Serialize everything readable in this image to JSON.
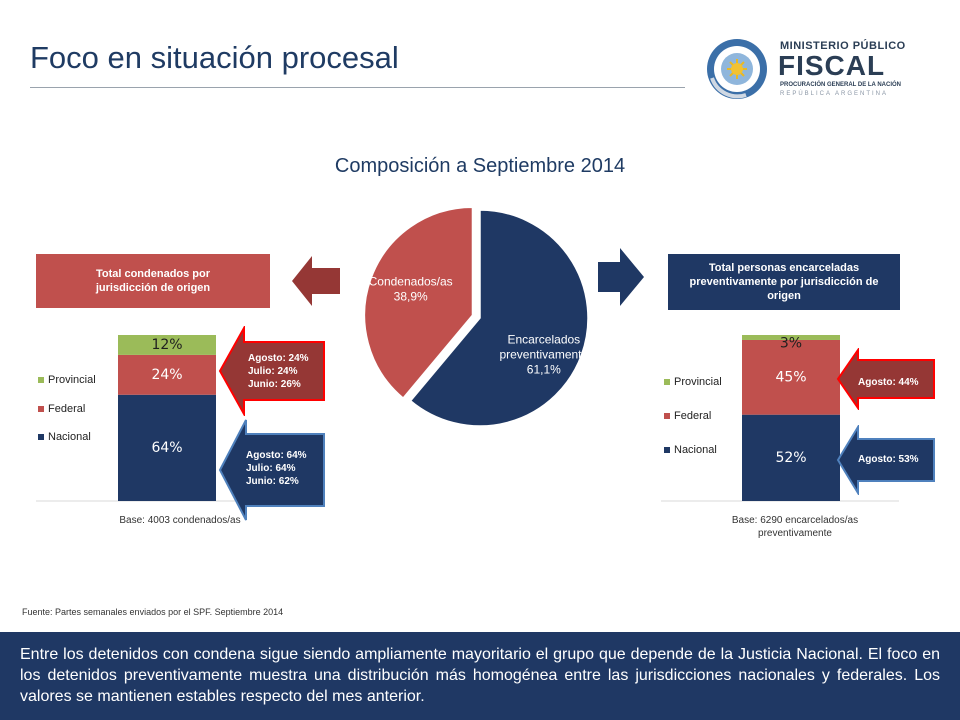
{
  "header": {
    "title": "Foco en situación procesal",
    "logo": {
      "line1": "MINISTERIO PÚBLICO",
      "line2": "FISCAL",
      "line3": "PROCURACIÓN GENERAL DE LA NACIÓN",
      "line4": "REPÚBLICA ARGENTINA"
    }
  },
  "chart_title": "Composición a Septiembre 2014",
  "boxes": {
    "condenados": "Total condenados por jurisdicción de origen",
    "encarcelados": "Total personas encarceladas preventivamente por jurisdicción de origen"
  },
  "chart_data": [
    {
      "type": "pie",
      "title": "Composición a Septiembre 2014",
      "slices": [
        {
          "label": "Encarcelados preventivamente",
          "value": 61.1,
          "display": "61,1%",
          "color": "#1f3864"
        },
        {
          "label": "Condenados/as",
          "value": 38.9,
          "display": "38,9%",
          "color": "#c0504d"
        }
      ]
    },
    {
      "type": "bar",
      "stacked": true,
      "base_label": "Base: 4003 condenados/as",
      "series": [
        {
          "name": "Nacional",
          "value": 64,
          "display": "64%",
          "color": "#1f3864"
        },
        {
          "name": "Federal",
          "value": 24,
          "display": "24%",
          "color": "#c0504d"
        },
        {
          "name": "Provincial",
          "value": 12,
          "display": "12%",
          "color": "#9bbb59"
        }
      ],
      "callouts": {
        "federal": [
          "Agosto: 24%",
          "Julio:  24%",
          "Junio:  26%"
        ],
        "nacional": [
          "Agosto: 64%",
          "Julio:  64%",
          "Junio: 62%"
        ]
      }
    },
    {
      "type": "bar",
      "stacked": true,
      "base_label": "Base: 6290 encarcelados/as preventivamente",
      "series": [
        {
          "name": "Nacional",
          "value": 52,
          "display": "52%",
          "color": "#1f3864"
        },
        {
          "name": "Federal",
          "value": 45,
          "display": "45%",
          "color": "#c0504d"
        },
        {
          "name": "Provincial",
          "value": 3,
          "display": "3%",
          "color": "#9bbb59"
        }
      ],
      "callouts": {
        "federal": [
          "Agosto: 44%"
        ],
        "nacional": [
          "Agosto: 53%"
        ]
      }
    }
  ],
  "source": "Fuente: Partes semanales enviados por el SPF. Septiembre 2014",
  "footer": "Entre los detenidos con condena sigue siendo ampliamente mayoritario el grupo que depende de la Justicia Nacional. El foco en los detenidos preventivamente muestra una distribución más homogénea entre las jurisdicciones nacionales y federales. Los valores se mantienen estables respecto del mes anterior."
}
